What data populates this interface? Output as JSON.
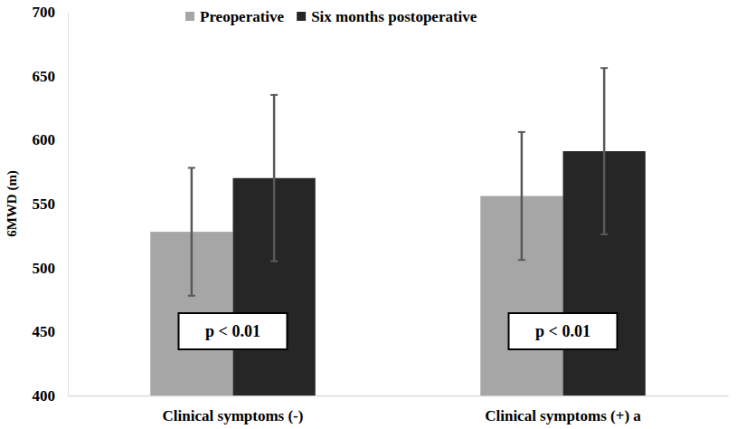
{
  "chart_data": {
    "type": "bar",
    "y_label": "6MWD (m)",
    "categories": [
      "Clinical symptoms (-)",
      "Clinical symptoms (+) a"
    ],
    "series": [
      {
        "name": "Preoperative",
        "color": "#a6a6a6",
        "values": [
          528,
          556
        ],
        "errors": [
          50,
          50
        ]
      },
      {
        "name": "Six months postoperative",
        "color": "#262626",
        "values": [
          570,
          591
        ],
        "errors": [
          65,
          65
        ]
      }
    ],
    "ylim": [
      400,
      700
    ],
    "yticks": [
      400,
      450,
      500,
      550,
      600,
      650,
      700
    ],
    "grid": false,
    "legend": "top",
    "annotations": [
      "p < 0.01",
      "p < 0.01"
    ]
  }
}
